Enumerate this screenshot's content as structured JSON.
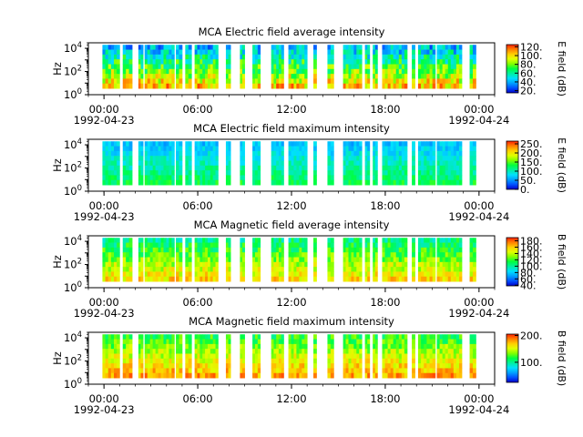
{
  "colors": {
    "ramp": [
      "#0000c8",
      "#0050ff",
      "#00a0ff",
      "#00e0ff",
      "#00f0a0",
      "#00ff40",
      "#80ff00",
      "#e0ff00",
      "#ffd000",
      "#ff8000",
      "#ff2000"
    ],
    "axis": "#000000",
    "background": "#ffffff"
  },
  "chart_data": [
    {
      "type": "heatmap",
      "title": "MCA  Electric field average intensity",
      "ylabel": "Hz",
      "y_scale": "log",
      "ylim": [
        1,
        30000
      ],
      "y_ticks": [
        {
          "value": 1,
          "base": "10",
          "exp": "0"
        },
        {
          "value": 100,
          "base": "10",
          "exp": "2"
        },
        {
          "value": 10000,
          "base": "10",
          "exp": "4"
        }
      ],
      "x_start_hours": 0,
      "x_ticks": [
        "00:00",
        "06:00",
        "12:00",
        "18:00",
        "00:00"
      ],
      "x_tick_hours": [
        0,
        6,
        12,
        18,
        24
      ],
      "date_labels": [
        "1992-04-23",
        "1992-04-24"
      ],
      "xlim_hours": [
        -1.0,
        25.0
      ],
      "colorbar": {
        "label": "E field (dB)",
        "range": [
          15,
          125
        ],
        "ticks": [
          20,
          40,
          60,
          80,
          100,
          120
        ],
        "tick_labels": [
          "20.",
          "40.",
          "60.",
          "80.",
          "100.",
          "120."
        ]
      },
      "data_segments_hours": [
        [
          -0.1,
          1.0
        ],
        [
          1.2,
          1.8
        ],
        [
          2.2,
          2.5
        ],
        [
          2.6,
          4.5
        ],
        [
          4.6,
          5.0
        ],
        [
          5.2,
          5.6
        ],
        [
          5.8,
          7.3
        ],
        [
          7.8,
          8.1
        ],
        [
          8.7,
          9.0
        ],
        [
          9.5,
          10.0
        ],
        [
          10.7,
          11.5
        ],
        [
          11.8,
          13.0
        ],
        [
          13.4,
          13.6
        ],
        [
          14.3,
          14.7
        ],
        [
          15.3,
          16.5
        ],
        [
          16.7,
          17.0
        ],
        [
          17.2,
          17.5
        ],
        [
          17.8,
          19.4
        ],
        [
          19.7,
          19.9
        ],
        [
          20.1,
          21.2
        ],
        [
          21.3,
          22.9
        ],
        [
          23.4,
          23.8
        ]
      ],
      "intensity_range_dB": [
        15,
        125
      ]
    },
    {
      "type": "heatmap",
      "title": "MCA  Electric field maximum intensity",
      "ylabel": "Hz",
      "y_scale": "log",
      "ylim": [
        1,
        30000
      ],
      "y_ticks": [
        {
          "value": 1,
          "base": "10",
          "exp": "0"
        },
        {
          "value": 100,
          "base": "10",
          "exp": "2"
        },
        {
          "value": 10000,
          "base": "10",
          "exp": "4"
        }
      ],
      "x_start_hours": 0,
      "x_ticks": [
        "00:00",
        "06:00",
        "12:00",
        "18:00",
        "00:00"
      ],
      "x_tick_hours": [
        0,
        6,
        12,
        18,
        24
      ],
      "date_labels": [
        "1992-04-23",
        "1992-04-24"
      ],
      "xlim_hours": [
        -1.0,
        25.0
      ],
      "colorbar": {
        "label": "E field (dB)",
        "range": [
          0,
          265
        ],
        "ticks": [
          0,
          50,
          100,
          150,
          200,
          250
        ],
        "tick_labels": [
          "0.",
          "50.",
          "100.",
          "150.",
          "200.",
          "250."
        ]
      },
      "data_segments_hours": [
        [
          -0.1,
          1.0
        ],
        [
          1.2,
          1.8
        ],
        [
          2.2,
          2.5
        ],
        [
          2.6,
          4.5
        ],
        [
          4.6,
          5.0
        ],
        [
          5.2,
          5.6
        ],
        [
          5.8,
          7.3
        ],
        [
          7.8,
          8.1
        ],
        [
          8.7,
          9.0
        ],
        [
          9.5,
          10.0
        ],
        [
          10.7,
          11.5
        ],
        [
          11.8,
          13.0
        ],
        [
          13.4,
          13.6
        ],
        [
          14.3,
          14.7
        ],
        [
          15.3,
          16.5
        ],
        [
          16.7,
          17.0
        ],
        [
          17.2,
          17.5
        ],
        [
          17.8,
          19.4
        ],
        [
          19.7,
          19.9
        ],
        [
          20.1,
          21.2
        ],
        [
          21.3,
          22.9
        ],
        [
          23.4,
          23.8
        ]
      ],
      "intensity_range_dB": [
        40,
        150
      ]
    },
    {
      "type": "heatmap",
      "title": "MCA  Magnetic field average intensity",
      "ylabel": "Hz",
      "y_scale": "log",
      "ylim": [
        1,
        30000
      ],
      "y_ticks": [
        {
          "value": 1,
          "base": "10",
          "exp": "0"
        },
        {
          "value": 100,
          "base": "10",
          "exp": "2"
        },
        {
          "value": 10000,
          "base": "10",
          "exp": "4"
        }
      ],
      "x_start_hours": 0,
      "x_ticks": [
        "00:00",
        "06:00",
        "12:00",
        "18:00",
        "00:00"
      ],
      "x_tick_hours": [
        0,
        6,
        12,
        18,
        24
      ],
      "date_labels": [
        "1992-04-23",
        "1992-04-24"
      ],
      "xlim_hours": [
        -1.0,
        25.0
      ],
      "colorbar": {
        "label": "B field (dB)",
        "range": [
          38,
          190
        ],
        "ticks": [
          40,
          60,
          80,
          100,
          120,
          140,
          160,
          180
        ],
        "tick_labels": [
          "40.",
          "60.",
          "80.",
          "100.",
          "120.",
          "140.",
          "160.",
          "180."
        ]
      },
      "data_segments_hours": [
        [
          -0.1,
          1.0
        ],
        [
          1.2,
          1.8
        ],
        [
          2.2,
          2.5
        ],
        [
          2.6,
          4.5
        ],
        [
          4.6,
          5.0
        ],
        [
          5.2,
          5.6
        ],
        [
          5.8,
          7.3
        ],
        [
          7.8,
          8.1
        ],
        [
          8.7,
          9.0
        ],
        [
          9.5,
          10.0
        ],
        [
          10.7,
          11.5
        ],
        [
          11.8,
          13.0
        ],
        [
          13.4,
          13.6
        ],
        [
          14.3,
          14.7
        ],
        [
          15.3,
          16.5
        ],
        [
          16.7,
          17.0
        ],
        [
          17.2,
          17.5
        ],
        [
          17.8,
          19.4
        ],
        [
          19.7,
          19.9
        ],
        [
          20.1,
          21.2
        ],
        [
          21.3,
          22.9
        ],
        [
          23.4,
          23.8
        ]
      ],
      "intensity_range_dB": [
        80,
        175
      ]
    },
    {
      "type": "heatmap",
      "title": "MCA  Magnetic field maximum intensity",
      "ylabel": "Hz",
      "y_scale": "log",
      "ylim": [
        1,
        30000
      ],
      "y_ticks": [
        {
          "value": 1,
          "base": "10",
          "exp": "0"
        },
        {
          "value": 100,
          "base": "10",
          "exp": "2"
        },
        {
          "value": 10000,
          "base": "10",
          "exp": "4"
        }
      ],
      "x_start_hours": 0,
      "x_ticks": [
        "00:00",
        "06:00",
        "12:00",
        "18:00",
        "00:00"
      ],
      "x_tick_hours": [
        0,
        6,
        12,
        18,
        24
      ],
      "date_labels": [
        "1992-04-23",
        "1992-04-24"
      ],
      "xlim_hours": [
        -1.0,
        25.0
      ],
      "colorbar": {
        "label": "B field (dB)",
        "range": [
          25,
          205
        ],
        "ticks": [
          100,
          200
        ],
        "tick_labels": [
          "100.",
          "200."
        ]
      },
      "data_segments_hours": [
        [
          -0.1,
          1.0
        ],
        [
          1.2,
          1.8
        ],
        [
          2.2,
          2.5
        ],
        [
          2.6,
          4.5
        ],
        [
          4.6,
          5.0
        ],
        [
          5.2,
          5.6
        ],
        [
          5.8,
          7.3
        ],
        [
          7.8,
          8.1
        ],
        [
          8.7,
          9.0
        ],
        [
          9.5,
          10.0
        ],
        [
          10.7,
          11.5
        ],
        [
          11.8,
          13.0
        ],
        [
          13.4,
          13.6
        ],
        [
          14.3,
          14.7
        ],
        [
          15.3,
          16.5
        ],
        [
          16.7,
          17.0
        ],
        [
          17.2,
          17.5
        ],
        [
          17.8,
          19.4
        ],
        [
          19.7,
          19.9
        ],
        [
          20.1,
          21.2
        ],
        [
          21.3,
          22.9
        ],
        [
          23.4,
          23.8
        ]
      ],
      "intensity_range_dB": [
        90,
        200
      ]
    }
  ]
}
